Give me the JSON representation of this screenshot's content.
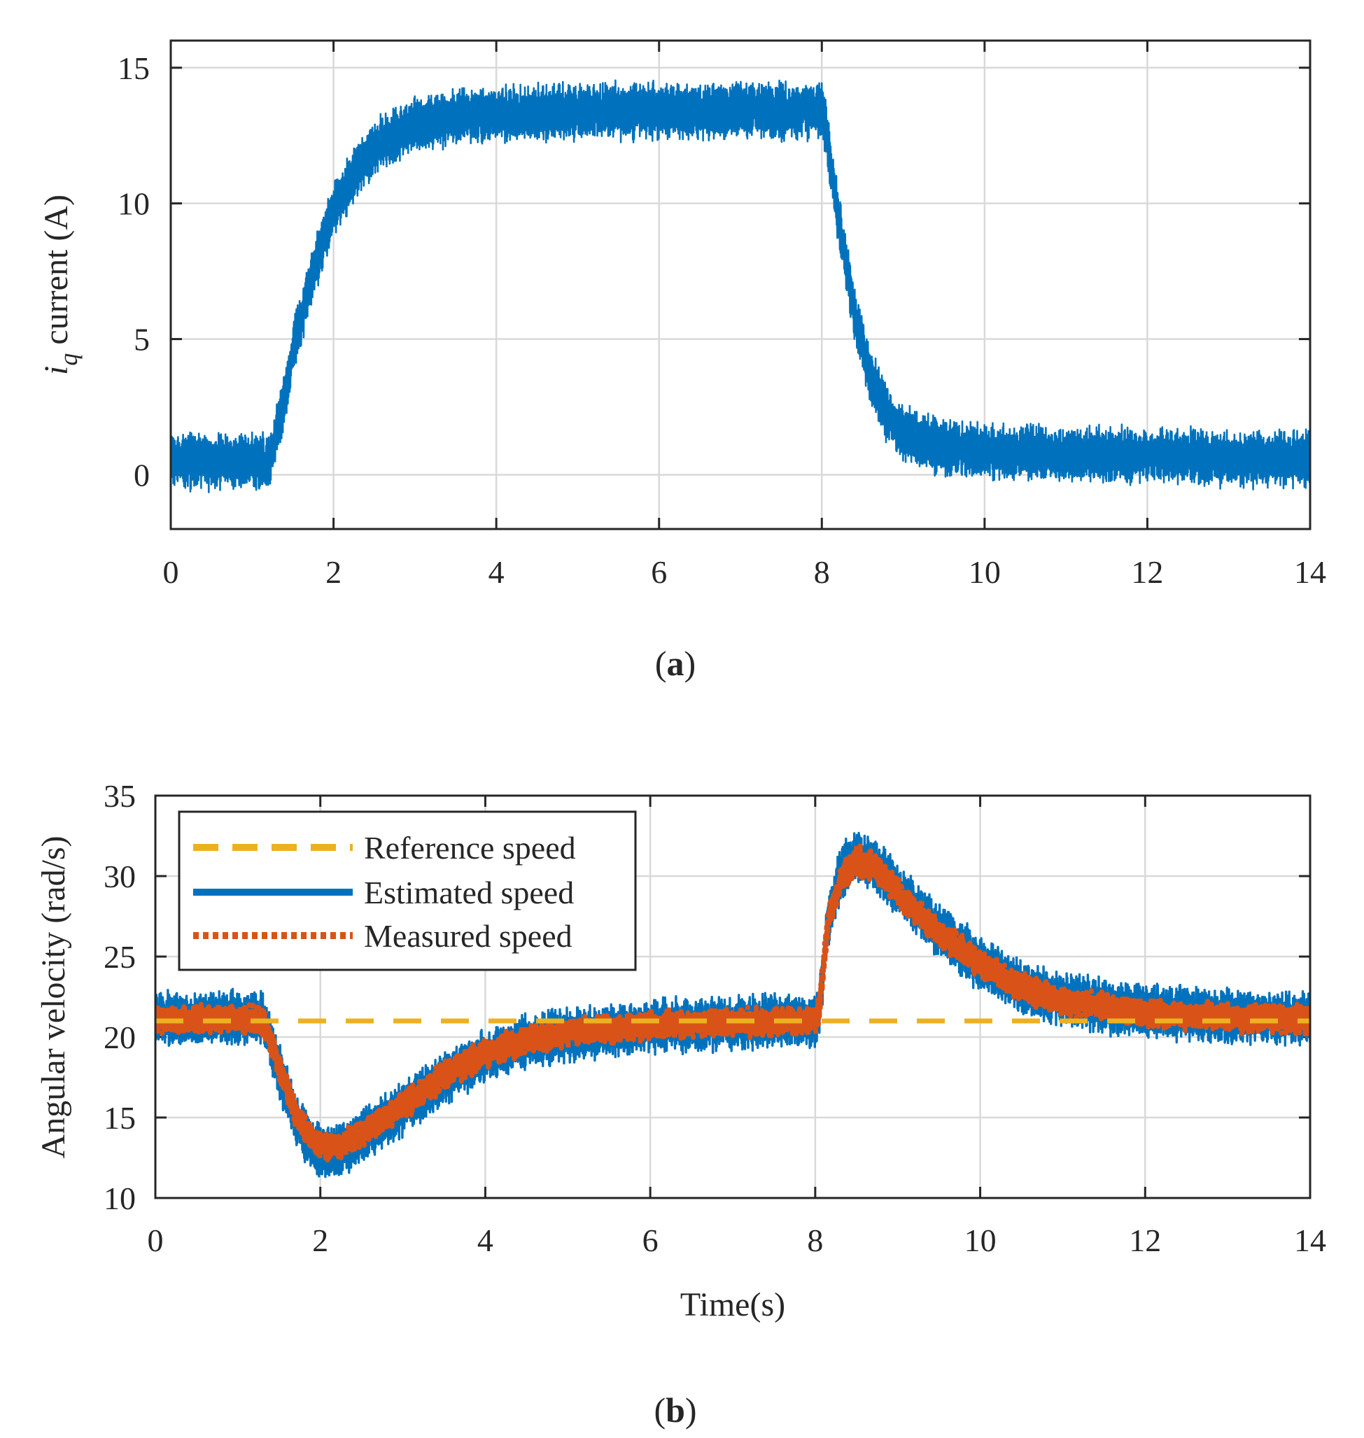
{
  "chart_data": [
    {
      "type": "line",
      "caption": "(a)",
      "caption_letter": "a",
      "xlabel": "",
      "ylabel_prefix": "i",
      "ylabel_sub": "q",
      "ylabel_suffix": " current (A)",
      "xlim": [
        0,
        14
      ],
      "ylim": [
        -2,
        16
      ],
      "xticks": [
        0,
        2,
        4,
        6,
        8,
        10,
        12,
        14
      ],
      "yticks": [
        0,
        5,
        10,
        15
      ],
      "grid": true,
      "series": [
        {
          "name": "iq current",
          "color": "#0072bd",
          "noise_band": 1.6,
          "points": [
            [
              0,
              0.5
            ],
            [
              1.2,
              0.5
            ],
            [
              1.35,
              2.2
            ],
            [
              1.5,
              4.5
            ],
            [
              1.7,
              7.0
            ],
            [
              2.0,
              9.8
            ],
            [
              2.3,
              11.3
            ],
            [
              2.6,
              12.3
            ],
            [
              3.0,
              12.9
            ],
            [
              3.5,
              13.2
            ],
            [
              4.0,
              13.3
            ],
            [
              5.0,
              13.4
            ],
            [
              6.0,
              13.4
            ],
            [
              7.0,
              13.4
            ],
            [
              8.0,
              13.4
            ],
            [
              8.05,
              12.8
            ],
            [
              8.2,
              9.5
            ],
            [
              8.4,
              6.0
            ],
            [
              8.6,
              3.6
            ],
            [
              8.8,
              2.2
            ],
            [
              9.0,
              1.5
            ],
            [
              9.5,
              1.0
            ],
            [
              10.0,
              0.85
            ],
            [
              11.0,
              0.75
            ],
            [
              12.0,
              0.7
            ],
            [
              13.0,
              0.6
            ],
            [
              14.0,
              0.6
            ]
          ]
        }
      ]
    },
    {
      "type": "line",
      "caption": "(b)",
      "caption_letter": "b",
      "xlabel": "Time(s)",
      "ylabel": "Angular velocity (rad/s)",
      "xlim": [
        0,
        14
      ],
      "ylim": [
        10,
        35
      ],
      "xticks": [
        0,
        2,
        4,
        6,
        8,
        10,
        12,
        14
      ],
      "yticks": [
        10,
        15,
        20,
        25,
        30,
        35
      ],
      "grid": true,
      "legend": {
        "position": "top-left"
      },
      "series": [
        {
          "name": "Reference speed",
          "color": "#edb120",
          "style": "dashed",
          "points": [
            [
              0,
              21
            ],
            [
              14,
              21
            ]
          ]
        },
        {
          "name": "Estimated speed",
          "color": "#0072bd",
          "style": "solid",
          "noise_band": 2.6,
          "points": [
            [
              0,
              21.2
            ],
            [
              1.3,
              21.2
            ],
            [
              1.5,
              18.0
            ],
            [
              1.7,
              15.0
            ],
            [
              1.9,
              13.2
            ],
            [
              2.1,
              12.8
            ],
            [
              2.4,
              13.5
            ],
            [
              2.8,
              14.8
            ],
            [
              3.2,
              16.3
            ],
            [
              3.6,
              17.8
            ],
            [
              4.0,
              18.9
            ],
            [
              4.5,
              19.7
            ],
            [
              5.0,
              20.2
            ],
            [
              6.0,
              20.6
            ],
            [
              7.0,
              20.9
            ],
            [
              8.0,
              21.0
            ],
            [
              8.05,
              21.8
            ],
            [
              8.15,
              27.0
            ],
            [
              8.3,
              30.0
            ],
            [
              8.5,
              31.3
            ],
            [
              8.7,
              30.8
            ],
            [
              9.0,
              29.2
            ],
            [
              9.5,
              26.6
            ],
            [
              10.0,
              24.6
            ],
            [
              10.5,
              23.2
            ],
            [
              11.0,
              22.3
            ],
            [
              12.0,
              21.6
            ],
            [
              13.0,
              21.3
            ],
            [
              14.0,
              21.2
            ]
          ]
        },
        {
          "name": "Measured speed",
          "color": "#d95319",
          "style": "dotted",
          "noise_band": 1.4,
          "points": [
            [
              0,
              21.1
            ],
            [
              1.3,
              21.1
            ],
            [
              1.5,
              18.2
            ],
            [
              1.7,
              15.3
            ],
            [
              1.9,
              13.6
            ],
            [
              2.1,
              13.1
            ],
            [
              2.4,
              13.7
            ],
            [
              2.8,
              15.0
            ],
            [
              3.2,
              16.5
            ],
            [
              3.6,
              17.9
            ],
            [
              4.0,
              19.0
            ],
            [
              4.5,
              19.8
            ],
            [
              5.0,
              20.3
            ],
            [
              6.0,
              20.7
            ],
            [
              7.0,
              20.9
            ],
            [
              8.0,
              21.0
            ],
            [
              8.05,
              21.8
            ],
            [
              8.15,
              27.0
            ],
            [
              8.3,
              29.7
            ],
            [
              8.5,
              31.0
            ],
            [
              8.7,
              30.6
            ],
            [
              9.0,
              29.0
            ],
            [
              9.5,
              26.5
            ],
            [
              10.0,
              24.5
            ],
            [
              10.5,
              23.1
            ],
            [
              11.0,
              22.2
            ],
            [
              12.0,
              21.5
            ],
            [
              13.0,
              21.2
            ],
            [
              14.0,
              21.1
            ]
          ]
        }
      ]
    }
  ]
}
